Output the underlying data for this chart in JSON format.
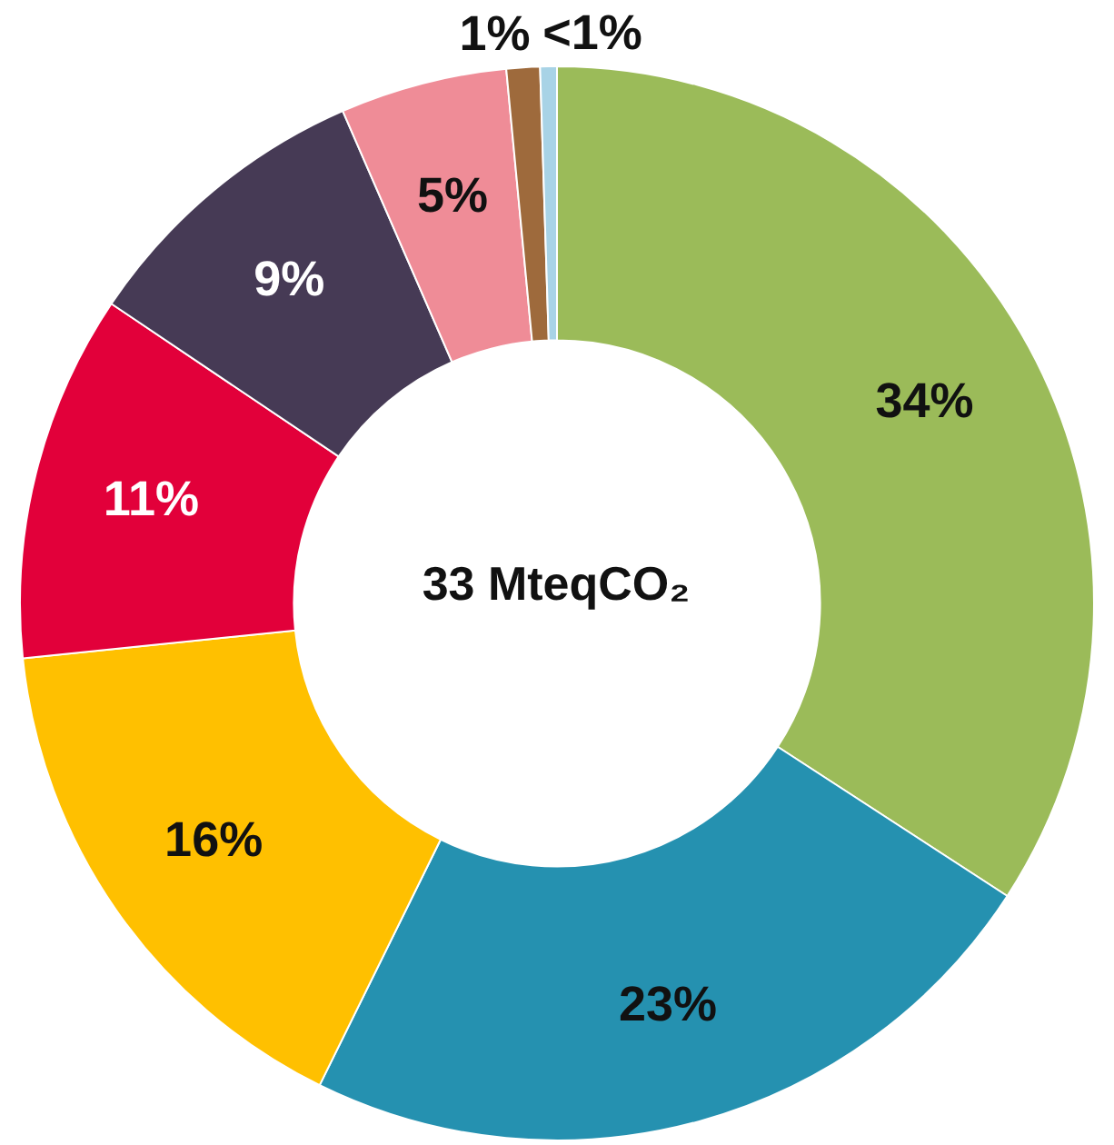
{
  "chart_data": {
    "type": "donut",
    "categories": [
      null,
      null,
      null,
      null,
      null,
      null,
      null,
      null
    ],
    "values": [
      34,
      23,
      16,
      11,
      9,
      5,
      1,
      0.5
    ],
    "value_labels": [
      "34%",
      "23%",
      "16%",
      "11%",
      "9%",
      "5%",
      "1%",
      "<1%"
    ],
    "colors": [
      "#9bbb59",
      "#2591b0",
      "#ffc000",
      "#e2003a",
      "#463a55",
      "#ef8c97",
      "#9e6a3c",
      "#a8d3e6"
    ],
    "annotations": [
      "33 MteqCO₂"
    ]
  }
}
